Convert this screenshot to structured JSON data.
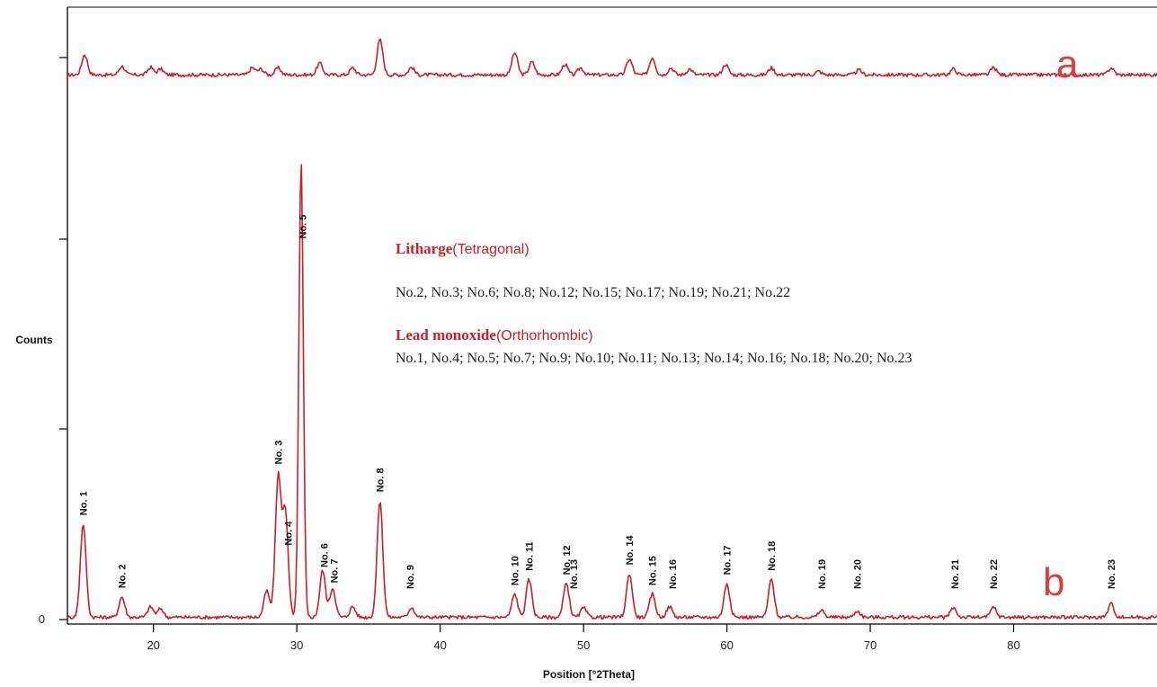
{
  "chart_data": {
    "type": "line",
    "xlabel": "Position [°2Theta]",
    "ylabel": "Counts",
    "xlim": [
      14,
      90
    ],
    "ylim": [
      0,
      10500
    ],
    "xticks": [
      20,
      30,
      40,
      50,
      60,
      70,
      80
    ],
    "ytick_labels": [
      "0"
    ],
    "series": [
      {
        "name": "a",
        "color": "#c8202a",
        "baseline": 9300,
        "x": [
          14.5,
          15.2,
          17.8,
          19.8,
          20.5,
          26.9,
          27.5,
          28.7,
          31.6,
          33.9,
          35.8,
          38.0,
          45.2,
          46.4,
          48.7,
          49.8,
          53.2,
          54.8,
          56.1,
          57.4,
          59.9,
          63.1,
          66.4,
          69.2,
          75.8,
          78.6,
          86.8,
          90.0
        ],
        "y": [
          9300,
          9650,
          9450,
          9430,
          9400,
          9420,
          9400,
          9420,
          9500,
          9420,
          9900,
          9430,
          9680,
          9520,
          9480,
          9420,
          9570,
          9600,
          9420,
          9400,
          9480,
          9420,
          9360,
          9380,
          9400,
          9420,
          9420,
          9300
        ]
      },
      {
        "name": "b",
        "color": "#c8202a",
        "baseline": 0,
        "x": [
          14.0,
          15.1,
          17.8,
          19.8,
          20.5,
          27.9,
          28.7,
          29.2,
          30.3,
          31.8,
          32.5,
          33.9,
          35.8,
          38.0,
          45.2,
          46.2,
          48.8,
          50.0,
          53.2,
          54.8,
          56.0,
          60.0,
          63.1,
          66.6,
          69.1,
          75.8,
          78.6,
          86.8,
          90.0
        ],
        "y": [
          0,
          1600,
          350,
          180,
          150,
          450,
          2400,
          1800,
          7800,
          800,
          500,
          180,
          2000,
          170,
          400,
          650,
          580,
          160,
          750,
          400,
          180,
          580,
          650,
          120,
          110,
          170,
          170,
          230,
          0
        ]
      }
    ],
    "peak_labels": [
      {
        "label": "No. 1",
        "x": 15.1
      },
      {
        "label": "No. 2",
        "x": 17.8
      },
      {
        "label": "No. 3",
        "x": 28.7
      },
      {
        "label": "No. 4",
        "x": 29.4
      },
      {
        "label": "No. 5",
        "x": 30.4
      },
      {
        "label": "No. 6",
        "x": 31.9
      },
      {
        "label": "No. 7",
        "x": 32.6
      },
      {
        "label": "No. 8",
        "x": 35.8
      },
      {
        "label": "No. 9",
        "x": 37.9
      },
      {
        "label": "No. 10",
        "x": 45.2
      },
      {
        "label": "No. 11",
        "x": 46.2
      },
      {
        "label": "No. 12",
        "x": 48.8
      },
      {
        "label": "No. 13",
        "x": 49.3
      },
      {
        "label": "No. 14",
        "x": 53.2
      },
      {
        "label": "No. 15",
        "x": 54.8
      },
      {
        "label": "No. 16",
        "x": 56.2
      },
      {
        "label": "No. 17",
        "x": 60.0
      },
      {
        "label": "No. 18",
        "x": 63.1
      },
      {
        "label": "No. 19",
        "x": 66.6
      },
      {
        "label": "No. 20",
        "x": 69.1
      },
      {
        "label": "No. 21",
        "x": 75.9
      },
      {
        "label": "No. 22",
        "x": 78.6
      },
      {
        "label": "No. 23",
        "x": 86.8
      }
    ],
    "panel_labels": {
      "a": "a",
      "b": "b"
    },
    "legend": {
      "litharge_bold": "Litharge",
      "litharge_plain": "(Tetragonal)",
      "litharge_list": "No.2, No.3; No.6; No.8; No.12; No.15; No.17; No.19; No.21; No.22",
      "lead_bold": "Lead monoxide",
      "lead_plain": "(Orthorhombic)",
      "lead_list": "No.1, No.4; No.5; No.7; No.9; No.10; No.11; No.13; No.14; No.16; No.18; No.20; No.23"
    },
    "grid": false
  }
}
